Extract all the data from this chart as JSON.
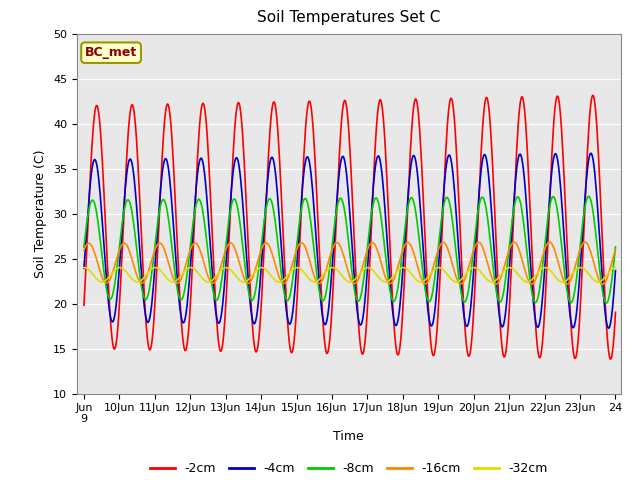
{
  "title": "Soil Temperatures Set C",
  "xlabel": "Time",
  "ylabel": "Soil Temperature (C)",
  "ylim": [
    10,
    50
  ],
  "annotation": "BC_met",
  "x_start_day": 9,
  "x_end_day": 24,
  "x_month": "Jun",
  "x_tick_days": [
    9,
    10,
    11,
    12,
    13,
    14,
    15,
    16,
    17,
    18,
    19,
    20,
    21,
    22,
    23,
    24
  ],
  "series": [
    {
      "label": "-2cm",
      "color": "#ff0000",
      "mean": 28.5,
      "amplitude": 13.5,
      "phase_shift": -0.7,
      "amp_trend": 0.08,
      "mean_trend": 0.0
    },
    {
      "label": "-4cm",
      "color": "#0000cc",
      "mean": 27.0,
      "amplitude": 9.0,
      "phase_shift": -0.35,
      "amp_trend": 0.05,
      "mean_trend": 0.0
    },
    {
      "label": "-8cm",
      "color": "#00cc00",
      "mean": 26.0,
      "amplitude": 5.5,
      "phase_shift": 0.05,
      "amp_trend": 0.03,
      "mean_trend": 0.0
    },
    {
      "label": "-16cm",
      "color": "#ff8800",
      "mean": 24.5,
      "amplitude": 2.2,
      "phase_shift": 0.7,
      "amp_trend": 0.01,
      "mean_trend": 0.0
    },
    {
      "label": "-32cm",
      "color": "#dddd00",
      "mean": 23.2,
      "amplitude": 0.8,
      "phase_shift": 1.5,
      "amp_trend": 0.0,
      "mean_trend": 0.0
    }
  ],
  "background_color": "#e8e8e8",
  "figure_bg": "#ffffff"
}
